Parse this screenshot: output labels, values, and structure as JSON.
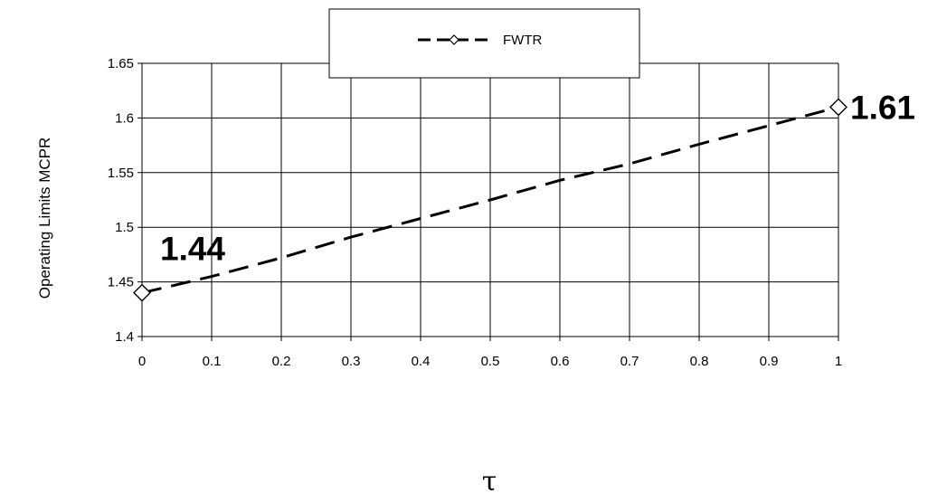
{
  "chart_data": {
    "type": "line",
    "title": "",
    "xlabel": "τ",
    "ylabel": "Operating Limits MCPR",
    "xlim": [
      0,
      1
    ],
    "ylim": [
      1.4,
      1.65
    ],
    "x_ticks": [
      "0",
      "0.1",
      "0.2",
      "0.3",
      "0.4",
      "0.5",
      "0.6",
      "0.7",
      "0.8",
      "0.9",
      "1"
    ],
    "y_ticks": [
      "1.4",
      "1.45",
      "1.5",
      "1.55",
      "1.6",
      "1.65"
    ],
    "grid": true,
    "legend_position": "top-center",
    "series": [
      {
        "name": "FWTR",
        "line_style": "dashed",
        "marker": "diamond",
        "color": "#000000",
        "x": [
          0,
          0.1,
          0.2,
          0.3,
          0.4,
          0.5,
          0.6,
          0.7,
          0.8,
          0.9,
          1
        ],
        "y": [
          1.44,
          1.455,
          1.472,
          1.491,
          1.508,
          1.525,
          1.543,
          1.558,
          1.576,
          1.593,
          1.61
        ],
        "marker_indices": [
          0,
          10
        ]
      }
    ],
    "annotations": [
      {
        "text": "1.44",
        "x": 0,
        "y": 1.44
      },
      {
        "text": "1.61",
        "x": 1,
        "y": 1.61
      }
    ]
  }
}
